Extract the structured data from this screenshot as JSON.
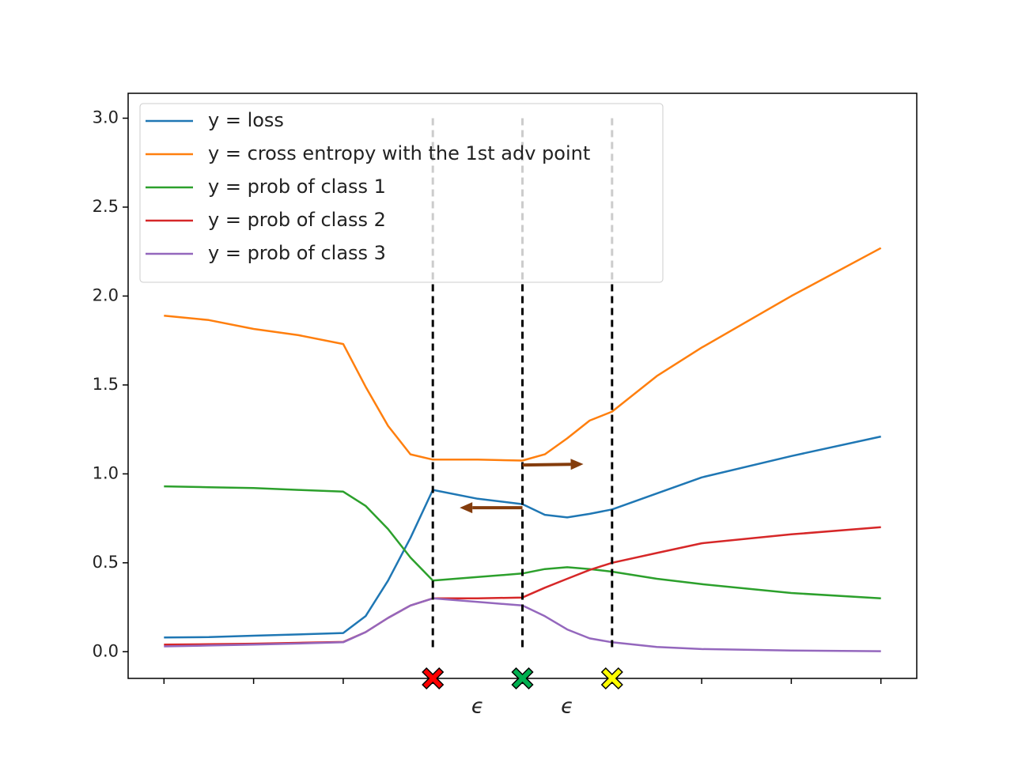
{
  "chart_data": {
    "type": "line",
    "x": [
      0,
      0.5,
      1,
      1.5,
      2,
      2.25,
      2.5,
      2.75,
      3,
      3.5,
      4,
      4.25,
      4.5,
      4.75,
      5,
      5.5,
      6,
      7,
      8
    ],
    "series": [
      {
        "name": "y = loss",
        "color": "#1f77b4",
        "values": [
          0.08,
          0.082,
          0.09,
          0.097,
          0.105,
          0.2,
          0.4,
          0.64,
          0.91,
          0.86,
          0.83,
          0.77,
          0.755,
          0.775,
          0.8,
          0.89,
          0.98,
          1.1,
          1.21
        ]
      },
      {
        "name": "y = cross entropy with the 1st adv point",
        "color": "#ff7f0e",
        "values": [
          1.89,
          1.865,
          1.815,
          1.78,
          1.73,
          1.49,
          1.27,
          1.11,
          1.08,
          1.08,
          1.075,
          1.11,
          1.2,
          1.3,
          1.35,
          1.55,
          1.71,
          2.0,
          2.27
        ]
      },
      {
        "name": "y = prob of class 1",
        "color": "#2ca02c",
        "values": [
          0.93,
          0.925,
          0.92,
          0.91,
          0.9,
          0.82,
          0.69,
          0.53,
          0.4,
          0.42,
          0.44,
          0.465,
          0.475,
          0.465,
          0.45,
          0.41,
          0.38,
          0.33,
          0.3
        ]
      },
      {
        "name": "y = prob of class 2",
        "color": "#d62728",
        "values": [
          0.04,
          0.042,
          0.045,
          0.05,
          0.055,
          0.11,
          0.19,
          0.26,
          0.3,
          0.3,
          0.305,
          0.36,
          0.41,
          0.46,
          0.5,
          0.555,
          0.61,
          0.66,
          0.7
        ]
      },
      {
        "name": "y = prob of class 3",
        "color": "#9467bd",
        "values": [
          0.03,
          0.035,
          0.04,
          0.046,
          0.053,
          0.11,
          0.19,
          0.26,
          0.3,
          0.28,
          0.26,
          0.2,
          0.125,
          0.075,
          0.053,
          0.027,
          0.015,
          0.007,
          0.003
        ]
      }
    ],
    "xlim": [
      -0.4,
      8.4
    ],
    "ylim": [
      -0.15,
      3.14
    ],
    "xticks": [
      0,
      1,
      2,
      3,
      4,
      5,
      6,
      7,
      8
    ],
    "xticklabels": false,
    "yticks": [
      {
        "value": 0,
        "label": "0.0"
      },
      {
        "value": 0.5,
        "label": "0.5"
      },
      {
        "value": 1,
        "label": "1.0"
      },
      {
        "value": 1.5,
        "label": "1.5"
      },
      {
        "value": 2,
        "label": "2.0"
      },
      {
        "value": 2.5,
        "label": "2.5"
      },
      {
        "value": 3,
        "label": "3.0"
      }
    ],
    "legend": "upper left",
    "vlines": [
      3,
      4,
      5
    ],
    "markers": [
      {
        "x": 3,
        "color": "#ff0000"
      },
      {
        "x": 4,
        "color": "#00b050"
      },
      {
        "x": 5,
        "color": "#ffff00"
      }
    ],
    "arrows": [
      {
        "from": [
          4,
          1.05
        ],
        "to": [
          4.68,
          1.055
        ],
        "color": "#843c0c"
      },
      {
        "from": [
          4,
          0.81
        ],
        "to": [
          3.3,
          0.81
        ],
        "color": "#843c0c"
      }
    ],
    "annotations": [
      {
        "text": "ϵ",
        "x": 3.5
      },
      {
        "text": "ϵ",
        "x": 4.5
      }
    ]
  }
}
